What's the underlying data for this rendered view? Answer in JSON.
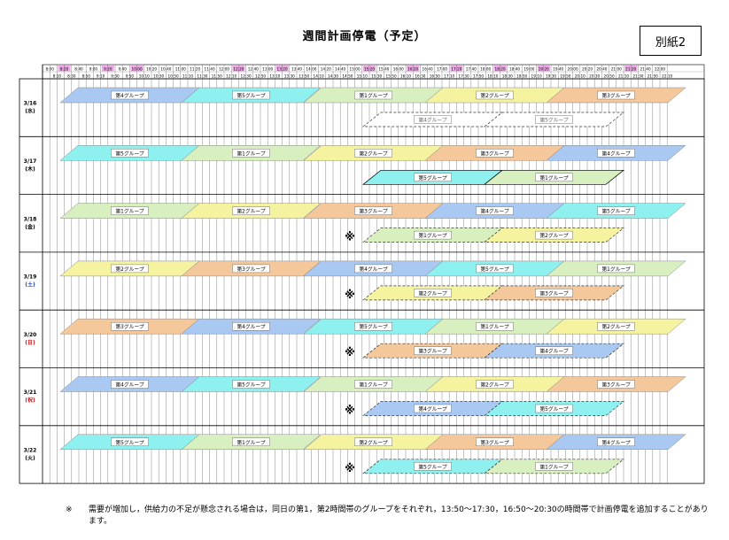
{
  "title": "週間計画停電（予定）",
  "doc_label": "別紙2",
  "time_ticks_upper": [
    "8:00",
    "8:20",
    "8:40",
    "9:00",
    "9:20",
    "9:40",
    "10:00",
    "10:20",
    "10:40",
    "11:00",
    "11:20",
    "11:40",
    "12:00",
    "12:20",
    "12:40",
    "13:00",
    "13:20",
    "13:40",
    "14:00",
    "14:20",
    "14:40",
    "15:00",
    "15:20",
    "15:40",
    "16:00",
    "16:20",
    "16:40",
    "17:00",
    "17:20",
    "17:40",
    "18:00",
    "18:20",
    "18:40",
    "19:00",
    "19:20",
    "19:40",
    "20:00",
    "20:20",
    "20:40",
    "21:00",
    "21:20",
    "21:40",
    "22:00"
  ],
  "time_ticks_lower": [
    "8:10",
    "8:30",
    "8:50",
    "9:10",
    "9:30",
    "9:50",
    "10:10",
    "10:30",
    "10:50",
    "11:10",
    "11:30",
    "11:50",
    "12:10",
    "12:30",
    "12:50",
    "13:10",
    "13:30",
    "13:50",
    "14:10",
    "14:30",
    "14:50",
    "15:10",
    "15:30",
    "15:50",
    "16:10",
    "16:30",
    "16:50",
    "17:10",
    "17:30",
    "17:50",
    "18:10",
    "18:30",
    "18:50",
    "19:10",
    "19:30",
    "19:50",
    "20:10",
    "20:30",
    "20:50",
    "21:10",
    "21:30",
    "21:50",
    "22:10"
  ],
  "highlighted_ticks": [
    "8:20",
    "9:20",
    "10:00",
    "12:20",
    "13:20",
    "15:20",
    "16:20",
    "17:20",
    "18:20",
    "19:20",
    "21:20"
  ],
  "group_colors": {
    "1": "#d8f0c0",
    "2": "#f6f3a0",
    "3": "#f5c89c",
    "4": "#a9c9f2",
    "5": "#8ff0f0"
  },
  "days": [
    {
      "date": "3/16",
      "dow": "(水)",
      "dow_color": "#000000",
      "note_mark": "",
      "primary": [
        "第4グループ",
        "第5グループ",
        "第1グループ",
        "第2グループ",
        "第3グループ"
      ],
      "primary_groups": [
        4,
        5,
        1,
        2,
        3
      ],
      "secondary": [
        "第4グループ",
        "第5グループ"
      ],
      "secondary_groups": [
        4,
        5
      ],
      "secondary_style": "outline"
    },
    {
      "date": "3/17",
      "dow": "(木)",
      "dow_color": "#000000",
      "note_mark": "",
      "primary": [
        "第5グループ",
        "第1グループ",
        "第2グループ",
        "第3グループ",
        "第4グループ"
      ],
      "primary_groups": [
        5,
        1,
        2,
        3,
        4
      ],
      "secondary": [
        "第5グループ",
        "第1グループ"
      ],
      "secondary_groups": [
        5,
        1
      ],
      "secondary_style": "solid"
    },
    {
      "date": "3/18",
      "dow": "(金)",
      "dow_color": "#000000",
      "note_mark": "※",
      "primary": [
        "第1グループ",
        "第2グループ",
        "第3グループ",
        "第4グループ",
        "第5グループ"
      ],
      "primary_groups": [
        1,
        2,
        3,
        4,
        5
      ],
      "secondary": [
        "第1グループ",
        "第2グループ"
      ],
      "secondary_groups": [
        1,
        2
      ],
      "secondary_style": "dashed"
    },
    {
      "date": "3/19",
      "dow": "(土)",
      "dow_color": "#1a3fbf",
      "note_mark": "※",
      "primary": [
        "第2グループ",
        "第3グループ",
        "第4グループ",
        "第5グループ",
        "第1グループ"
      ],
      "primary_groups": [
        2,
        3,
        4,
        5,
        1
      ],
      "secondary": [
        "第2グループ",
        "第3グループ"
      ],
      "secondary_groups": [
        2,
        3
      ],
      "secondary_style": "dashed"
    },
    {
      "date": "3/20",
      "dow": "(日)",
      "dow_color": "#d01010",
      "note_mark": "※",
      "primary": [
        "第3グループ",
        "第4グループ",
        "第5グループ",
        "第1グループ",
        "第2グループ"
      ],
      "primary_groups": [
        3,
        4,
        5,
        1,
        2
      ],
      "secondary": [
        "第3グループ",
        "第4グループ"
      ],
      "secondary_groups": [
        3,
        4
      ],
      "secondary_style": "dashed"
    },
    {
      "date": "3/21",
      "dow": "(祝)",
      "dow_color": "#d01010",
      "note_mark": "※",
      "primary": [
        "第4グループ",
        "第5グループ",
        "第1グループ",
        "第2グループ",
        "第3グループ"
      ],
      "primary_groups": [
        4,
        5,
        1,
        2,
        3
      ],
      "secondary": [
        "第4グループ",
        "第5グループ"
      ],
      "secondary_groups": [
        4,
        5
      ],
      "secondary_style": "dashed"
    },
    {
      "date": "3/22",
      "dow": "(火)",
      "dow_color": "#000000",
      "note_mark": "※",
      "primary": [
        "第5グループ",
        "第1グループ",
        "第2グループ",
        "第3グループ",
        "第4グループ"
      ],
      "primary_groups": [
        5,
        1,
        2,
        3,
        4
      ],
      "secondary": [
        "第5グループ",
        "第1グループ"
      ],
      "secondary_groups": [
        5,
        1
      ],
      "secondary_style": "dashed"
    }
  ],
  "footnote": {
    "mark": "※",
    "text": "需要が増加し，供給力の不足が懸念される場合は，同日の第1，第2時間帯のグループをそれぞれ，13:50～17:30，16:50～20:30の時間帯で計画停電を追加することがあります。"
  }
}
